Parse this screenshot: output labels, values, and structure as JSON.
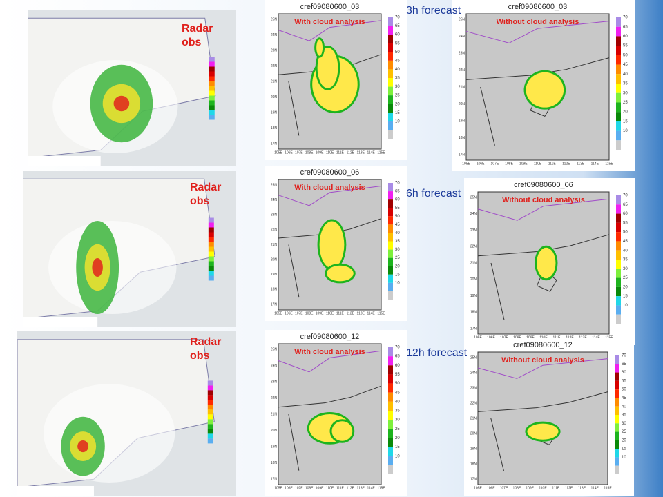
{
  "rows": [
    {
      "obs_label": "Radar obs",
      "forecast_label": "3h forecast",
      "panels": [
        {
          "title": "cref09080600_03",
          "subtitle": "With cloud analysis"
        },
        {
          "title": "cref09080600_03",
          "subtitle": "Without cloud analysis"
        }
      ]
    },
    {
      "obs_label": "Radar obs",
      "forecast_label": "6h forecast",
      "panels": [
        {
          "title": "cref09080600_06",
          "subtitle": "With cloud analysis"
        },
        {
          "title": "cref09080600_06",
          "subtitle": "Without cloud analysis"
        }
      ]
    },
    {
      "obs_label": "Radar obs",
      "forecast_label": "12h forecast",
      "panels": [
        {
          "title": "cref09080600_12",
          "subtitle": "With cloud analysis"
        },
        {
          "title": "cref09080600_12",
          "subtitle": "Without cloud analysis"
        }
      ]
    }
  ],
  "colorbar_levels": [
    70,
    65,
    60,
    55,
    50,
    45,
    40,
    35,
    30,
    25,
    20,
    15,
    10
  ],
  "lat_labels": [
    "25N",
    "24N",
    "23N",
    "22N",
    "21N",
    "20N",
    "19N",
    "18N",
    "17N"
  ],
  "lon_labels": [
    "105E",
    "106E",
    "107E",
    "108E",
    "109E",
    "110E",
    "111E",
    "112E",
    "113E",
    "114E",
    "115E"
  ]
}
